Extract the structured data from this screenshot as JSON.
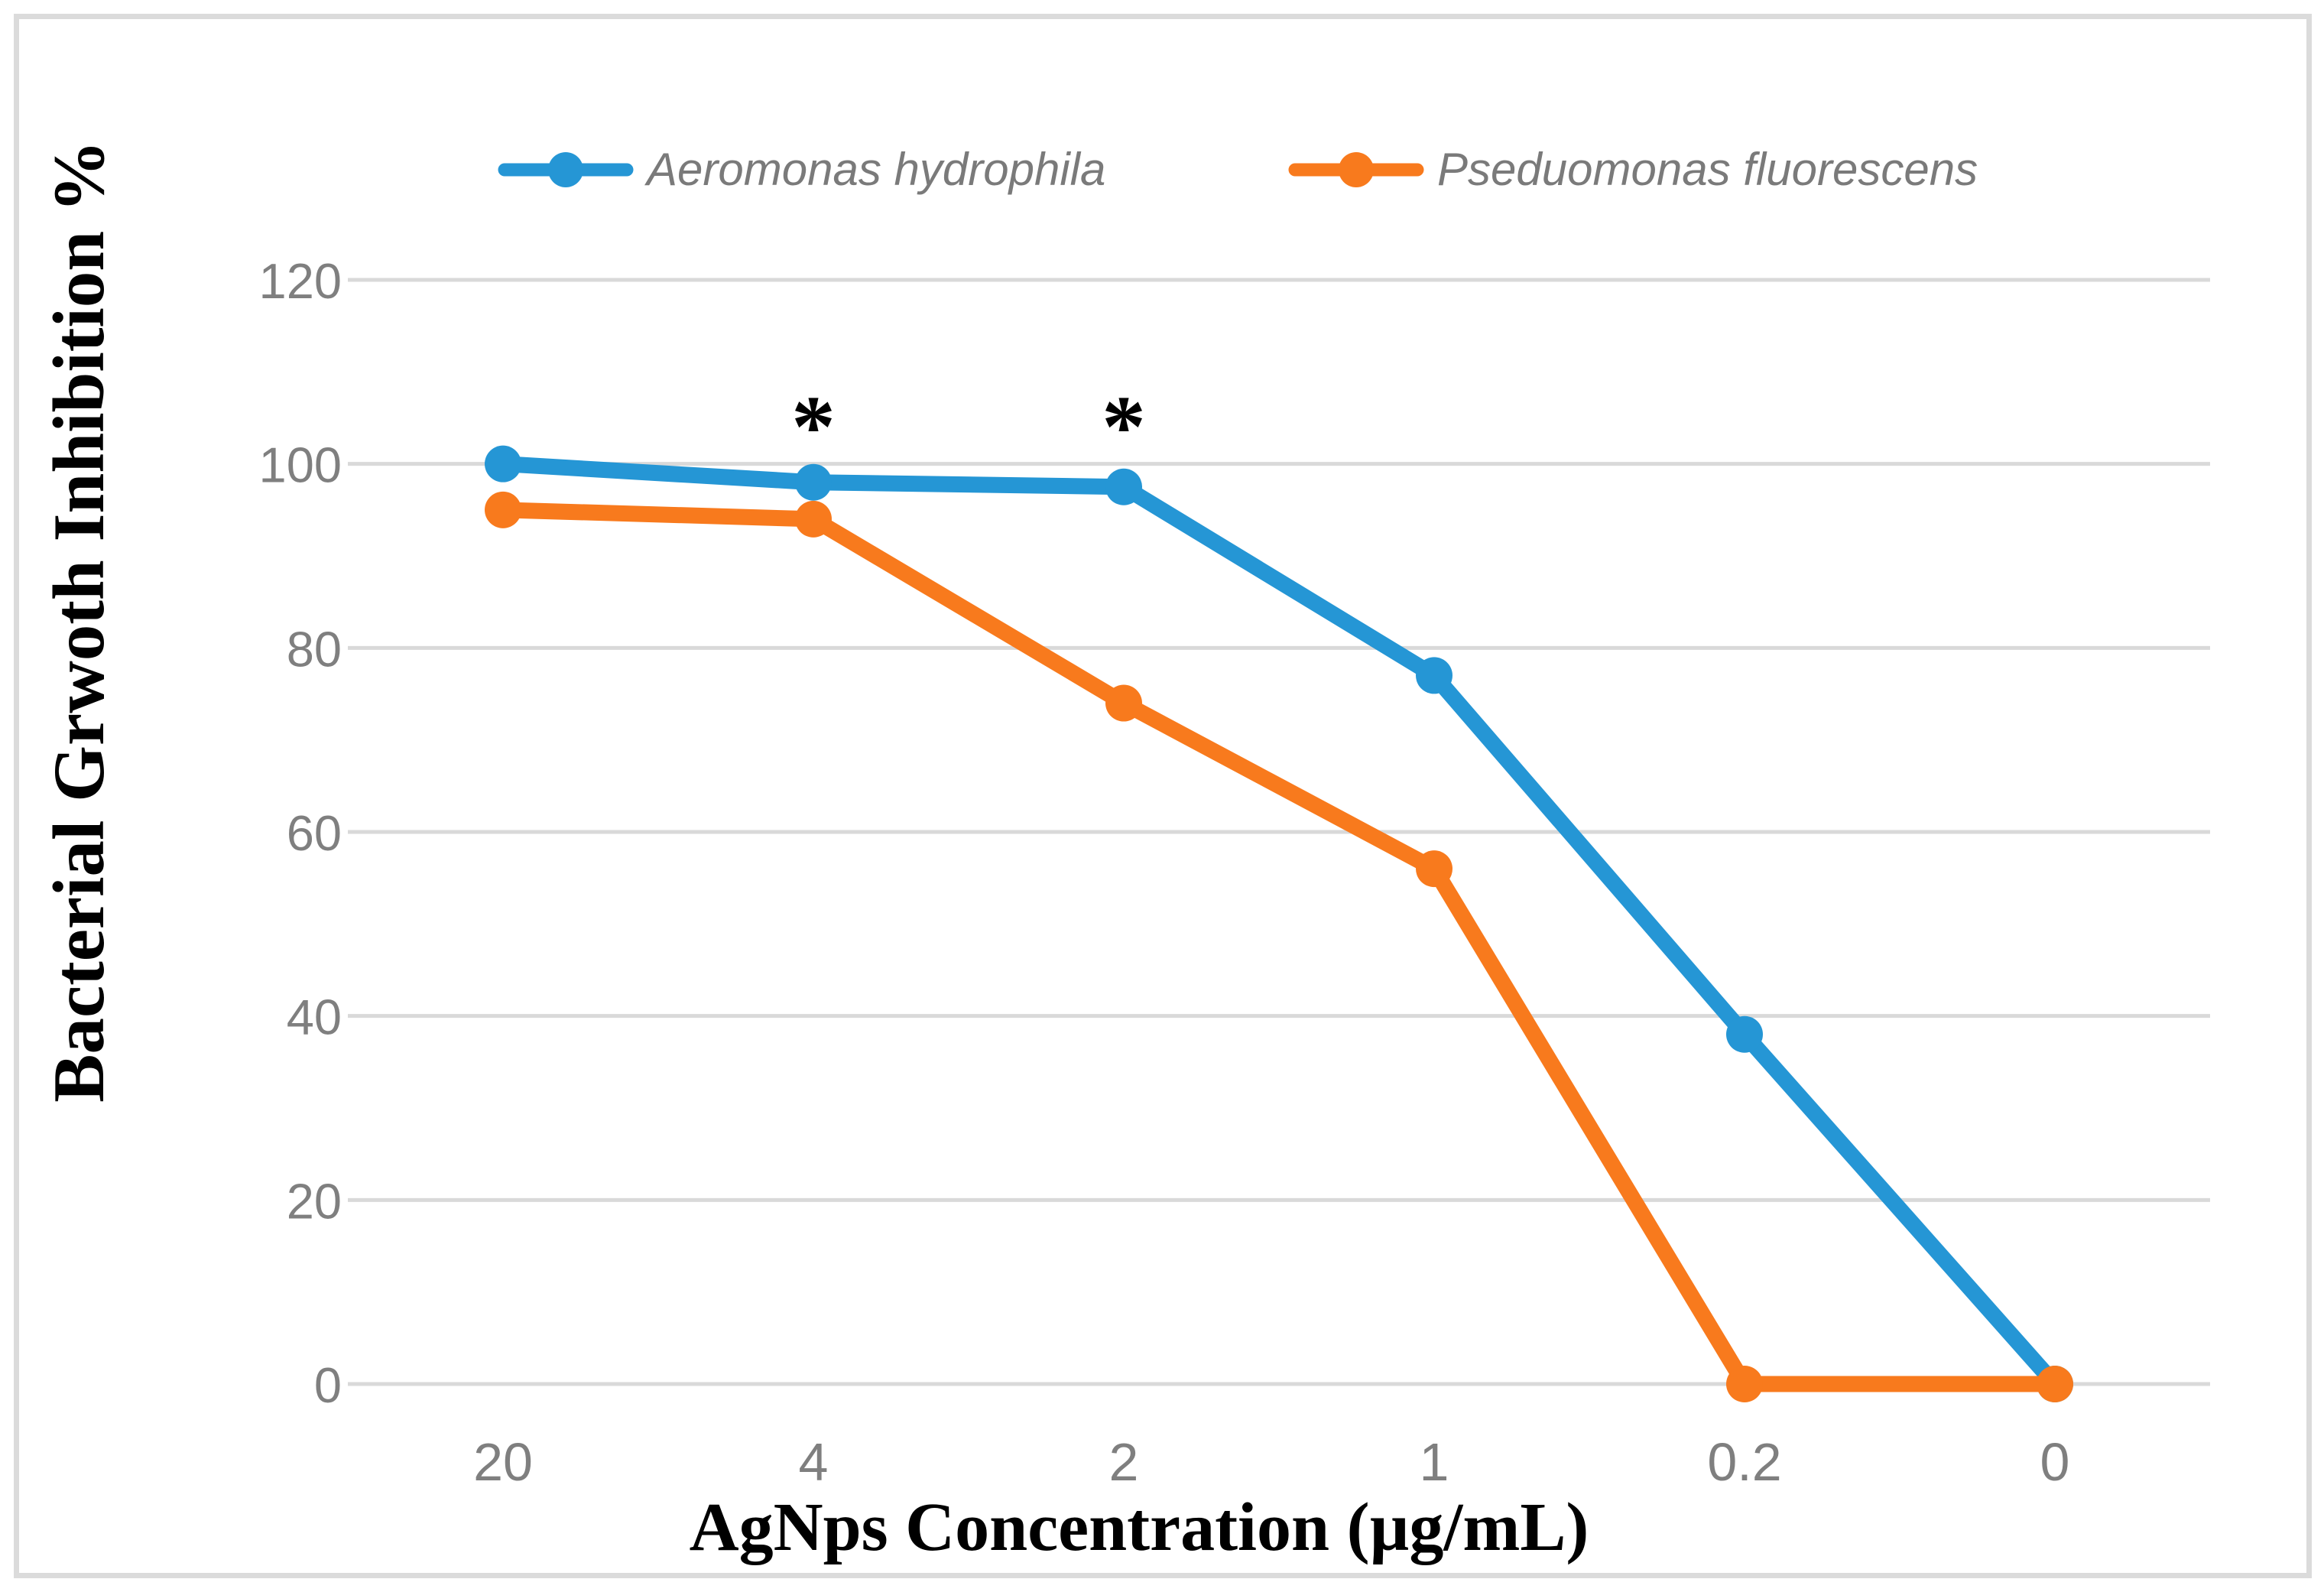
{
  "chart_data": {
    "type": "line",
    "title": "",
    "xlabel": "AgNps Concentration (µg/mL)",
    "ylabel": "Bacterial Grwoth Inhibition %",
    "categories": [
      "20",
      "4",
      "2",
      "1",
      "0.2",
      "0"
    ],
    "yticks": [
      120,
      100,
      80,
      60,
      40,
      20,
      0
    ],
    "ylim": [
      0,
      120
    ],
    "grid": true,
    "legend_position": "top",
    "series": [
      {
        "name": "Aeromonas hydrophila",
        "color": "#2596D5",
        "values": [
          100,
          98,
          97.5,
          77,
          38,
          0
        ]
      },
      {
        "name": "Pseduomonas fluorescens",
        "color": "#F87A1D",
        "values": [
          95,
          94,
          74,
          56,
          0,
          0
        ]
      }
    ],
    "annotations": [
      {
        "text": "*",
        "category": "4",
        "value": 105
      },
      {
        "text": "*",
        "category": "2",
        "value": 105
      }
    ]
  },
  "colors": {
    "gridline": "#D9D9D9",
    "chart_border": "#DBDBDB",
    "tick_label": "#7F7F7F",
    "legend_text": "#7A7A7A",
    "annotation": "#000000"
  }
}
